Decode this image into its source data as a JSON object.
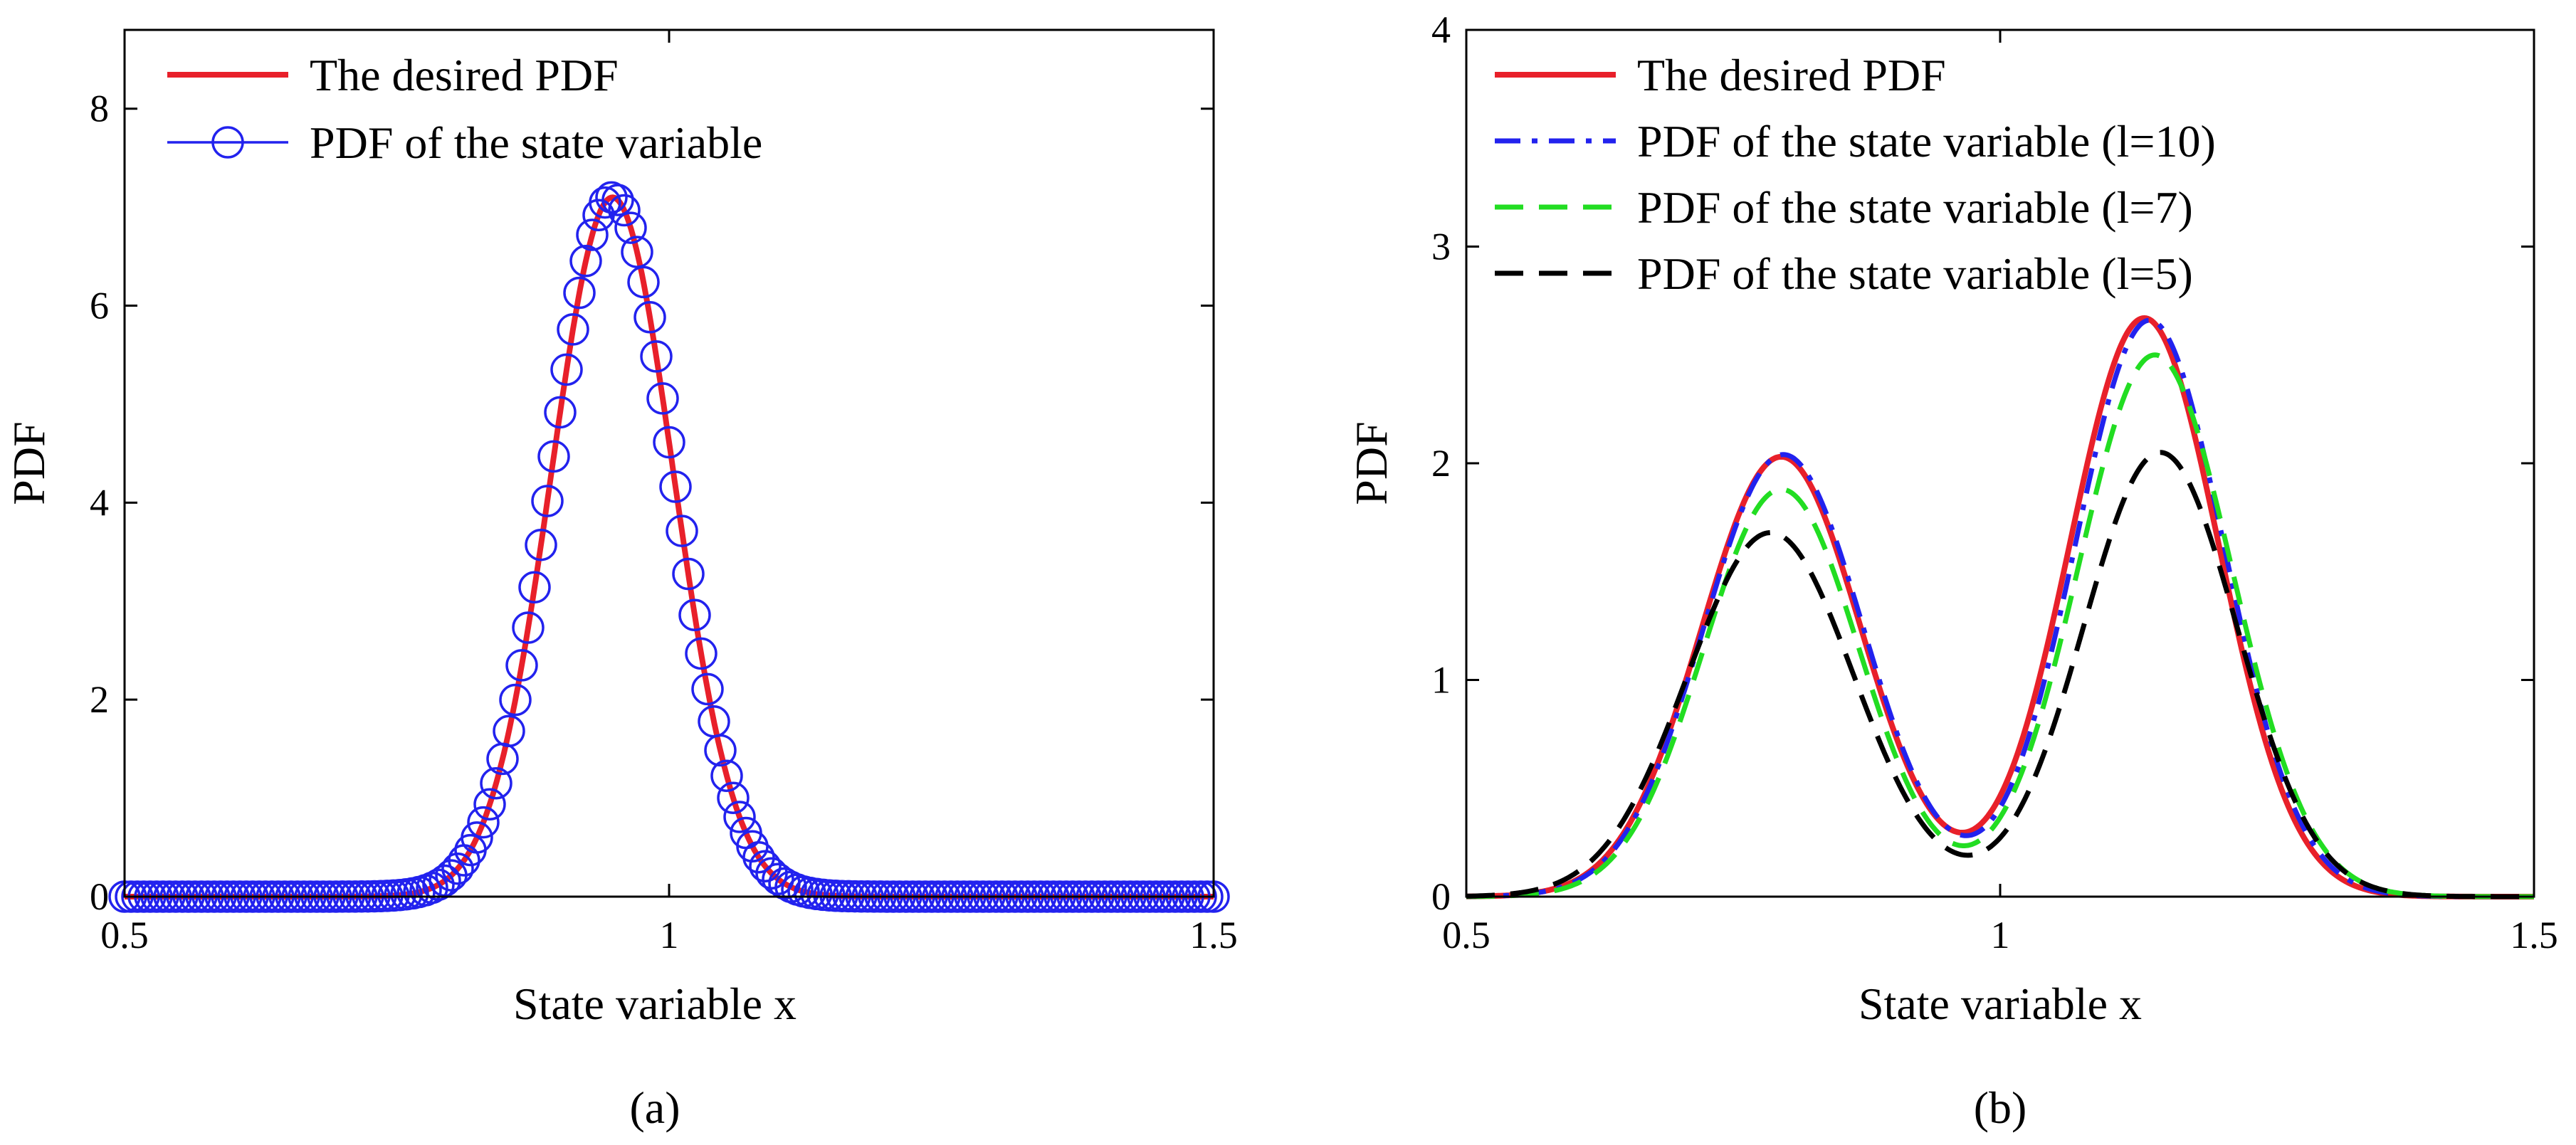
{
  "chart_data": [
    {
      "panel": "a",
      "type": "line",
      "caption": "(a)",
      "xlabel": "State variable x",
      "ylabel": "PDF",
      "xlim": [
        0.5,
        1.5
      ],
      "ylim": [
        0,
        8.8
      ],
      "xticks": [
        "0.5",
        "1",
        "1.5"
      ],
      "xtick_values": [
        0.5,
        1,
        1.5
      ],
      "yticks": [
        "0",
        "2",
        "4",
        "6",
        "8"
      ],
      "ytick_values": [
        0,
        2,
        4,
        6,
        8
      ],
      "legend_position": "top-left",
      "series": [
        {
          "name": "The desired PDF",
          "color": "#e8202a",
          "style": "solid",
          "model": {
            "kind": "gaussian",
            "mean": 0.948,
            "sd": 0.056,
            "peak": 7.1
          }
        },
        {
          "name": "PDF of the state variable",
          "color": "#2222ee",
          "style": "circles",
          "model": {
            "kind": "gaussian",
            "mean": 0.948,
            "sd": 0.056,
            "peak": 7.1
          }
        }
      ]
    },
    {
      "panel": "b",
      "type": "line",
      "caption": "(b)",
      "xlabel": "State variable x",
      "ylabel": "PDF",
      "xlim": [
        0.5,
        1.5
      ],
      "ylim": [
        0,
        4
      ],
      "xticks": [
        "0.5",
        "1",
        "1.5"
      ],
      "xtick_values": [
        0.5,
        1,
        1.5
      ],
      "yticks": [
        "0",
        "1",
        "2",
        "3",
        "4"
      ],
      "ytick_values": [
        0,
        1,
        2,
        3,
        4
      ],
      "legend_position": "top-left",
      "series": [
        {
          "name": "The desired PDF",
          "color": "#e8202a",
          "style": "solid",
          "model": {
            "kind": "bimodal",
            "m1": 0.795,
            "s1": 0.075,
            "a1": 2.03,
            "m2": 1.135,
            "s2": 0.07,
            "a2": 2.67
          }
        },
        {
          "name": "PDF of the state variable (l=10)",
          "color": "#2222ee",
          "style": "dashdot",
          "model": {
            "kind": "bimodal",
            "m1": 0.797,
            "s1": 0.075,
            "a1": 2.04,
            "m2": 1.14,
            "s2": 0.07,
            "a2": 2.66
          }
        },
        {
          "name": "PDF of the state variable (l=7)",
          "color": "#22dd22",
          "style": "dashed",
          "model": {
            "kind": "bimodal",
            "m1": 0.795,
            "s1": 0.073,
            "a1": 1.88,
            "m2": 1.145,
            "s2": 0.072,
            "a2": 2.5
          }
        },
        {
          "name": "PDF of the state variable (l=5)",
          "color": "#000000",
          "style": "dashed",
          "model": {
            "kind": "bimodal",
            "m1": 0.785,
            "s1": 0.078,
            "a1": 1.68,
            "m2": 1.15,
            "s2": 0.072,
            "a2": 2.05
          }
        }
      ]
    }
  ]
}
